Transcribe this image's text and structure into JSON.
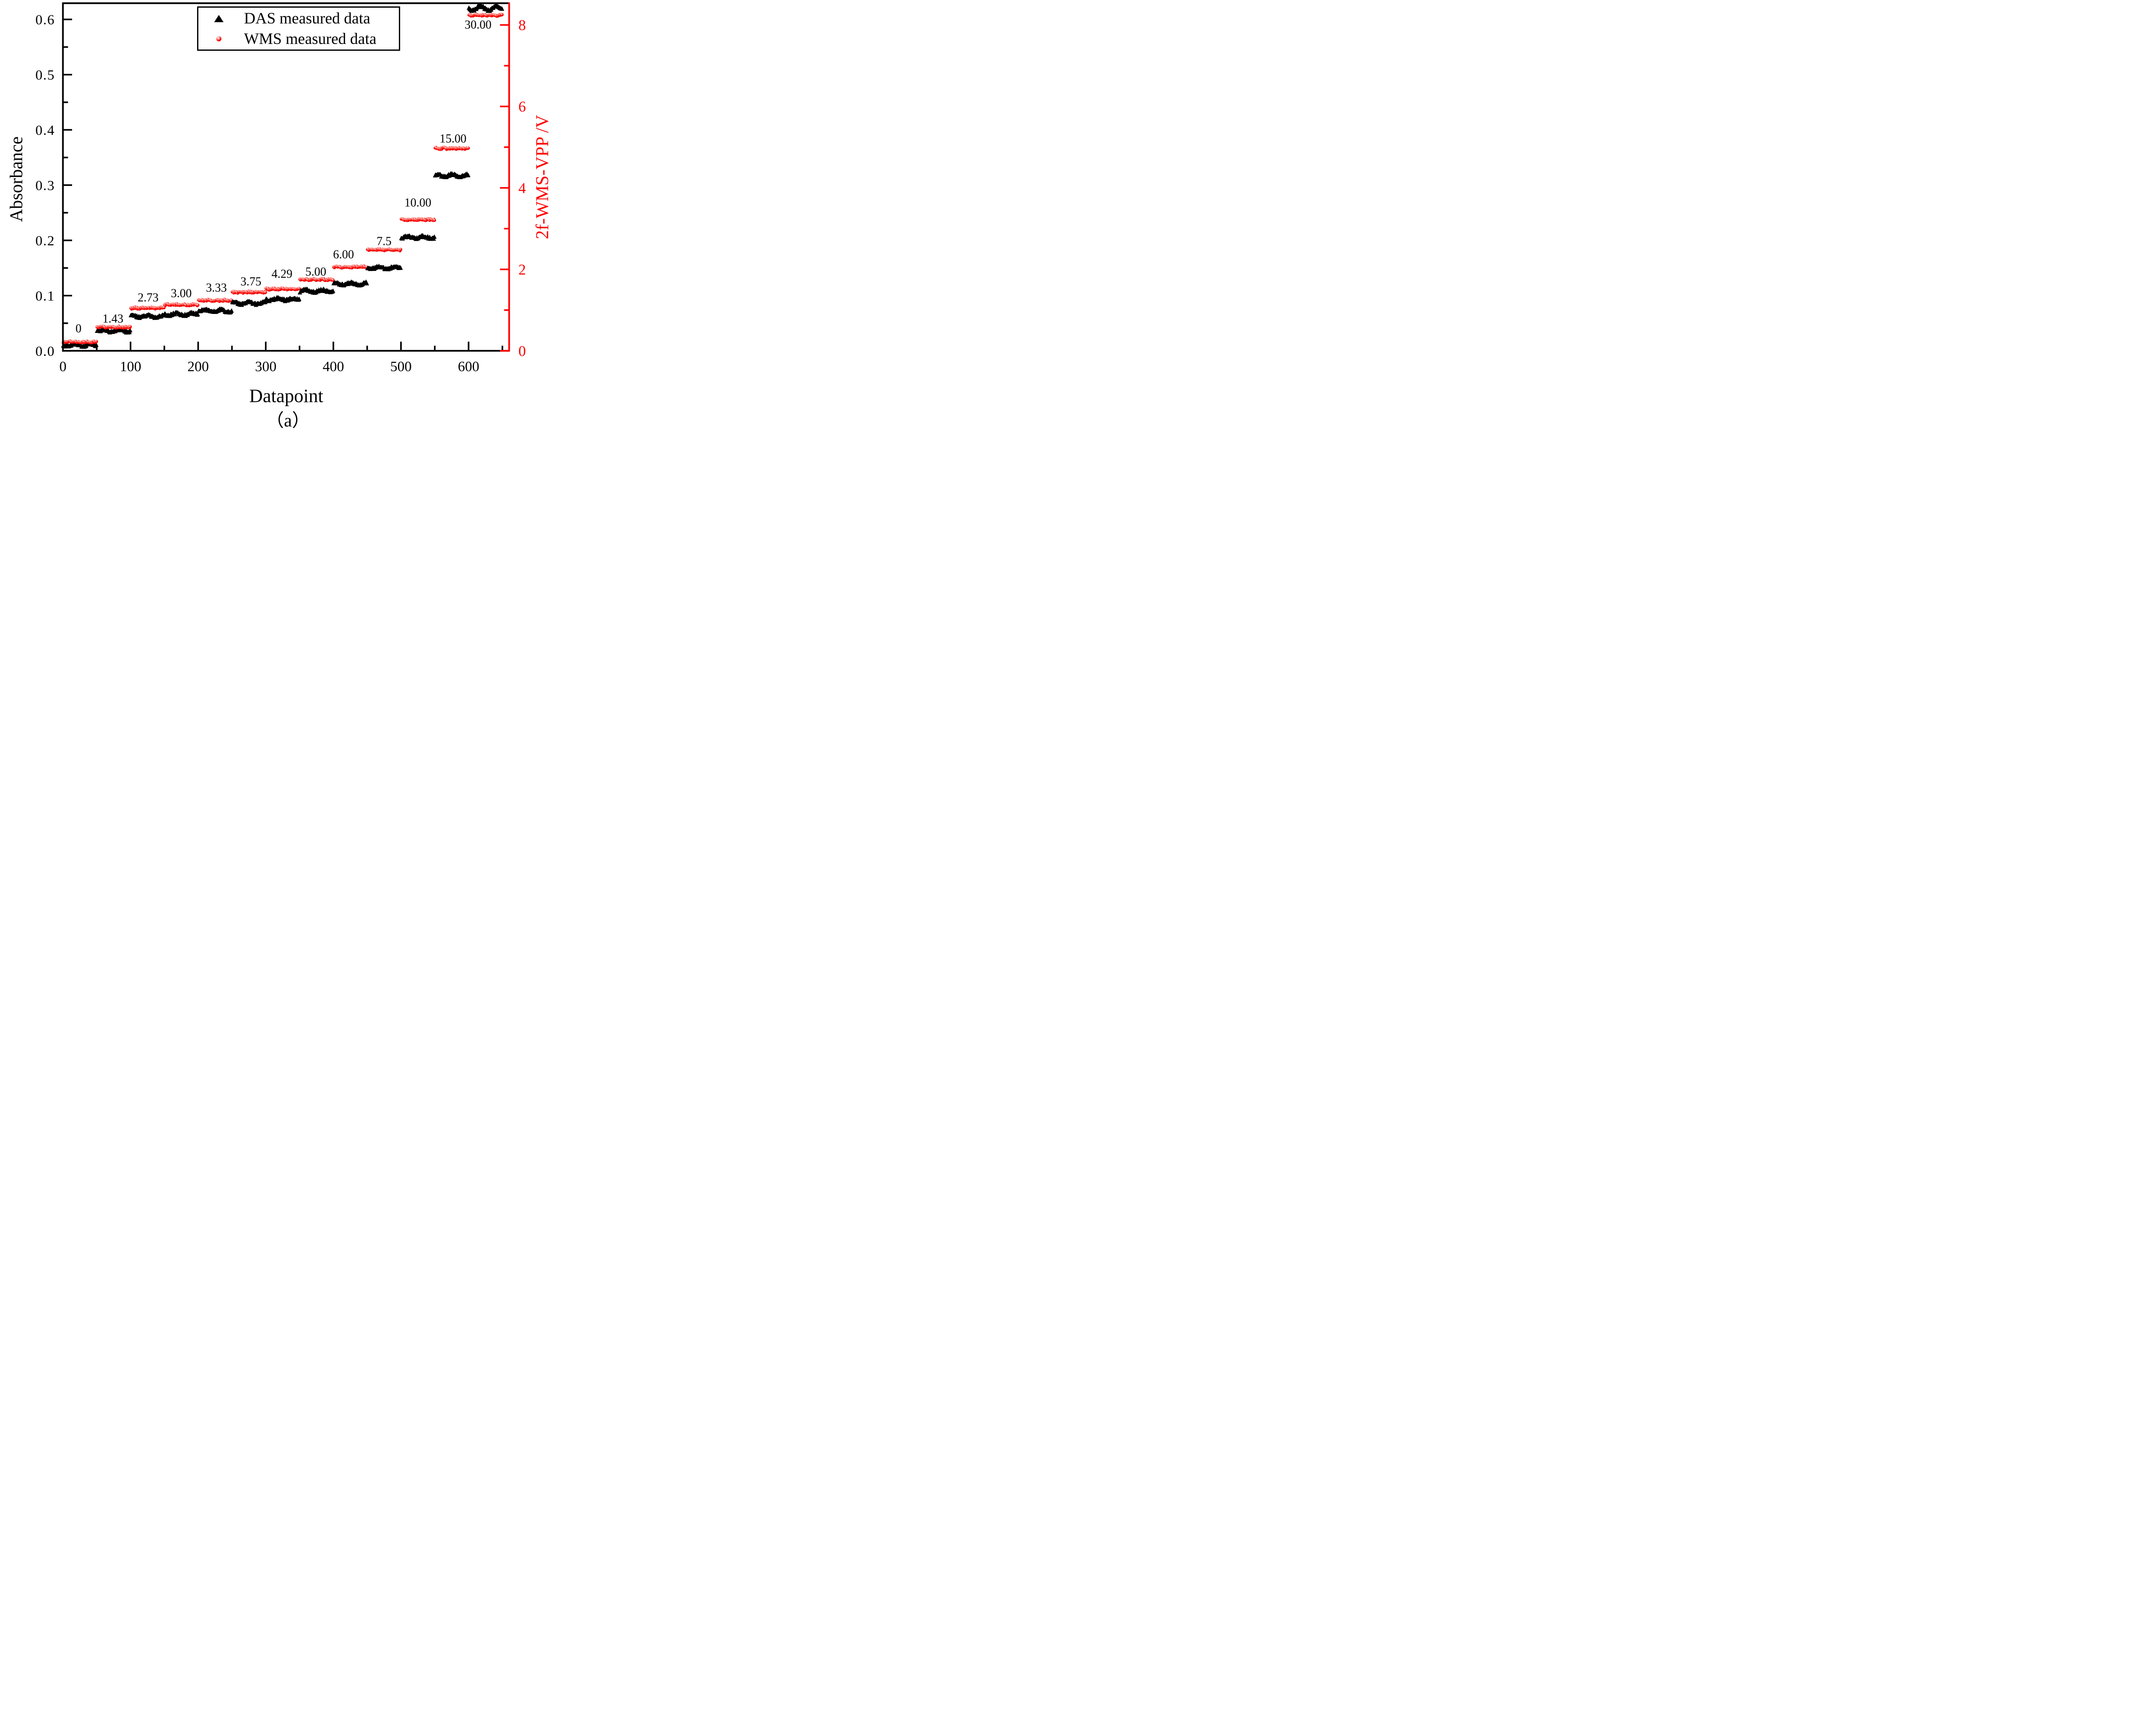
{
  "figure": {
    "caption": "（a）",
    "background": "#ffffff"
  },
  "legend": {
    "position": "top-center",
    "entries": [
      {
        "marker": "triangle-icon",
        "label": "DAS measured data",
        "color": "#000000"
      },
      {
        "marker": "ball-icon",
        "label": "WMS measured data",
        "color": "#fb0d0c"
      }
    ]
  },
  "axes": {
    "left_color": "#000000",
    "bottom_color": "#000000",
    "right_color": "#ff0000"
  },
  "chart_data": {
    "type": "scatter",
    "title": "",
    "xlabel": "Datapoint",
    "ylabel_left": "Absorbance",
    "ylabel_right": "2f-WMS-VPP /V",
    "grid": false,
    "legend_position": "top-center",
    "xlim": [
      0,
      660
    ],
    "x_ticks_major": [
      0,
      100,
      200,
      300,
      400,
      500,
      600
    ],
    "x_ticks_minor": [
      50,
      150,
      250,
      350,
      450,
      550,
      650
    ],
    "ylim_left": [
      0,
      0.632
    ],
    "y_ticks_left": [
      {
        "v": 0.0,
        "label": "0.0"
      },
      {
        "v": 0.1,
        "label": "0.1"
      },
      {
        "v": 0.2,
        "label": "0.2"
      },
      {
        "v": 0.3,
        "label": "0.3"
      },
      {
        "v": 0.4,
        "label": "0.4"
      },
      {
        "v": 0.5,
        "label": "0.5"
      },
      {
        "v": 0.6,
        "label": "0.6"
      }
    ],
    "y_ticks_left_minor": [
      0.05,
      0.15,
      0.25,
      0.35,
      0.45,
      0.55
    ],
    "ylim_right": [
      0,
      8.53
    ],
    "y_ticks_right": [
      {
        "v": 0,
        "label": "0"
      },
      {
        "v": 2,
        "label": "2"
      },
      {
        "v": 4,
        "label": "4"
      },
      {
        "v": 6,
        "label": "6"
      },
      {
        "v": 8,
        "label": "8"
      }
    ],
    "y_ticks_right_minor": [
      1,
      3,
      5,
      7
    ],
    "series": [
      {
        "name": "DAS measured data",
        "axis": "left",
        "marker": "triangle",
        "color": "#000000"
      },
      {
        "name": "WMS measured data",
        "axis": "right",
        "marker": "ball",
        "color": "#fb0d0c"
      }
    ],
    "steps": [
      {
        "label": "0",
        "x_start": 0,
        "x_end": 50,
        "das_absorbance": 0.01,
        "wms_vpp": 0.22,
        "ann_x": 23,
        "ann_y_absorbance": 0.041
      },
      {
        "label": "1.43",
        "x_start": 50,
        "x_end": 100,
        "das_absorbance": 0.036,
        "wms_vpp": 0.58,
        "ann_x": 74,
        "ann_y_absorbance": 0.059
      },
      {
        "label": "2.73",
        "x_start": 100,
        "x_end": 150,
        "das_absorbance": 0.062,
        "wms_vpp": 1.05,
        "ann_x": 126,
        "ann_y_absorbance": 0.097
      },
      {
        "label": "3.00",
        "x_start": 150,
        "x_end": 200,
        "das_absorbance": 0.066,
        "wms_vpp": 1.13,
        "ann_x": 175,
        "ann_y_absorbance": 0.105
      },
      {
        "label": "3.33",
        "x_start": 200,
        "x_end": 250,
        "das_absorbance": 0.072,
        "wms_vpp": 1.24,
        "ann_x": 227,
        "ann_y_absorbance": 0.115
      },
      {
        "label": "3.75",
        "x_start": 250,
        "x_end": 300,
        "das_absorbance": 0.086,
        "wms_vpp": 1.44,
        "ann_x": 278,
        "ann_y_absorbance": 0.126
      },
      {
        "label": "4.29",
        "x_start": 300,
        "x_end": 350,
        "das_absorbance": 0.093,
        "wms_vpp": 1.52,
        "ann_x": 324,
        "ann_y_absorbance": 0.14
      },
      {
        "label": "5.00",
        "x_start": 350,
        "x_end": 400,
        "das_absorbance": 0.108,
        "wms_vpp": 1.75,
        "ann_x": 374,
        "ann_y_absorbance": 0.144
      },
      {
        "label": "6.00",
        "x_start": 400,
        "x_end": 450,
        "das_absorbance": 0.121,
        "wms_vpp": 2.06,
        "ann_x": 415,
        "ann_y_absorbance": 0.175
      },
      {
        "label": "7.5",
        "x_start": 450,
        "x_end": 500,
        "das_absorbance": 0.15,
        "wms_vpp": 2.48,
        "ann_x": 475,
        "ann_y_absorbance": 0.199
      },
      {
        "label": "10.00",
        "x_start": 500,
        "x_end": 550,
        "das_absorbance": 0.205,
        "wms_vpp": 3.22,
        "ann_x": 525,
        "ann_y_absorbance": 0.269
      },
      {
        "label": "15.00",
        "x_start": 550,
        "x_end": 600,
        "das_absorbance": 0.317,
        "wms_vpp": 4.97,
        "ann_x": 577,
        "ann_y_absorbance": 0.385
      },
      {
        "label": "30.00",
        "x_start": 600,
        "x_end": 650,
        "das_absorbance": 0.62,
        "wms_vpp": 8.24,
        "ann_x": 614,
        "ann_y_absorbance": 0.591
      }
    ]
  }
}
